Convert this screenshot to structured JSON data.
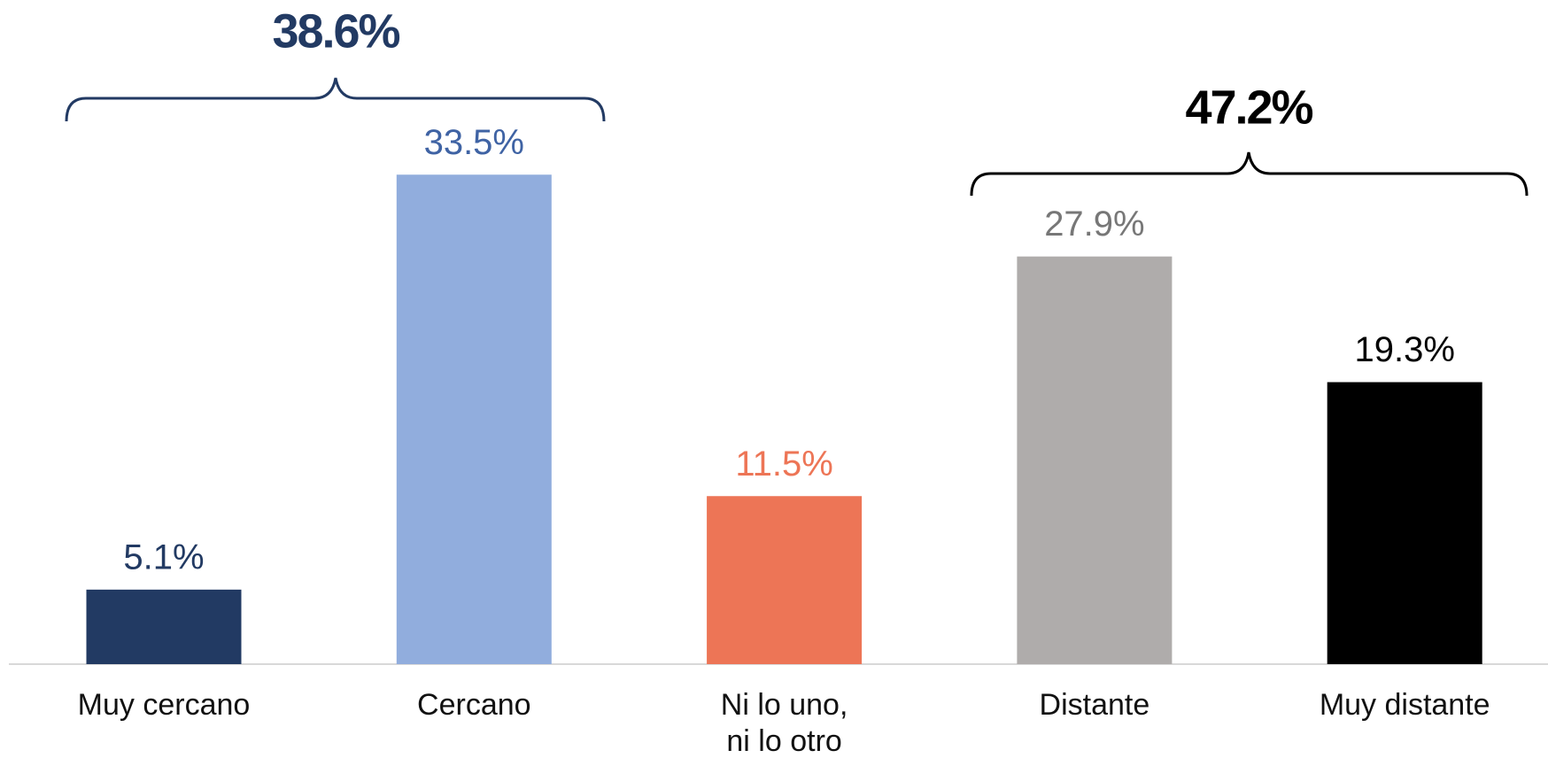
{
  "chart_data": {
    "type": "bar",
    "categories": [
      "Muy cercano",
      "Cercano",
      "Ni lo uno,\nni lo otro",
      "Distante",
      "Muy distante"
    ],
    "values": [
      5.1,
      33.5,
      11.5,
      27.9,
      19.3
    ],
    "value_labels": [
      "5.1%",
      "33.5%",
      "11.5%",
      "27.9%",
      "19.3%"
    ],
    "colors": [
      "#223a63",
      "#91addd",
      "#ed7556",
      "#afacab",
      "#000000"
    ],
    "label_colors": [
      "#223a63",
      "#3f63a4",
      "#ed7556",
      "#777777",
      "#000000"
    ],
    "ylim": [
      0,
      40
    ],
    "annotations": [
      "38.6%",
      "47.2%"
    ],
    "annotation_colors": [
      "#223a63",
      "#000000"
    ]
  }
}
